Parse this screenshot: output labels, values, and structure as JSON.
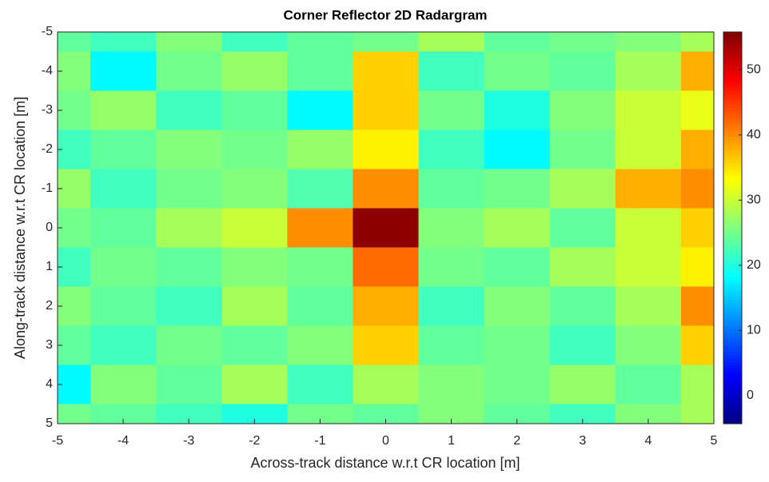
{
  "chart_data": {
    "type": "heatmap",
    "title": "Corner Reflector 2D Radargram",
    "x_label": "Across-track distance w.r.t CR location [m]",
    "y_label": "Along-track distance w.r.t CR location [m]",
    "x": [
      -5,
      -4,
      -3,
      -2,
      -1,
      0,
      1,
      2,
      3,
      4,
      5
    ],
    "y": [
      -5,
      -4,
      -3,
      -2,
      -1,
      0,
      1,
      2,
      3,
      4,
      5
    ],
    "values": [
      [
        24,
        22,
        26,
        22,
        24,
        25,
        28,
        24,
        25,
        26,
        28
      ],
      [
        26,
        18,
        25,
        27,
        24,
        36,
        22,
        25,
        24,
        28,
        38
      ],
      [
        25,
        27,
        22,
        24,
        18,
        36,
        25,
        20,
        26,
        30,
        32
      ],
      [
        22,
        24,
        26,
        25,
        27,
        34,
        22,
        18,
        25,
        30,
        38
      ],
      [
        27,
        22,
        25,
        26,
        23,
        40,
        24,
        25,
        28,
        38,
        40
      ],
      [
        25,
        24,
        28,
        30,
        40,
        55,
        26,
        28,
        24,
        30,
        36
      ],
      [
        22,
        25,
        24,
        26,
        25,
        42,
        25,
        24,
        28,
        30,
        34
      ],
      [
        26,
        24,
        22,
        28,
        24,
        38,
        22,
        26,
        24,
        28,
        40
      ],
      [
        24,
        22,
        25,
        24,
        26,
        36,
        24,
        25,
        22,
        26,
        36
      ],
      [
        18,
        26,
        24,
        28,
        22,
        28,
        26,
        25,
        27,
        24,
        28
      ],
      [
        25,
        24,
        22,
        20,
        25,
        24,
        26,
        24,
        22,
        26,
        28
      ]
    ],
    "xlim": [
      -5,
      5
    ],
    "xticks": [
      -5,
      -4,
      -3,
      -2,
      -1,
      0,
      1,
      2,
      3,
      4,
      5
    ],
    "ylim": [
      -5,
      5
    ],
    "yticks": [
      -5,
      -4,
      -3,
      -2,
      -1,
      0,
      1,
      2,
      3,
      4,
      5
    ],
    "y_direction": "reverse",
    "colormap": "jet",
    "clim": [
      -4.3,
      55.8
    ],
    "colorbar_ticks": [
      0,
      10,
      20,
      30,
      40,
      50
    ]
  }
}
